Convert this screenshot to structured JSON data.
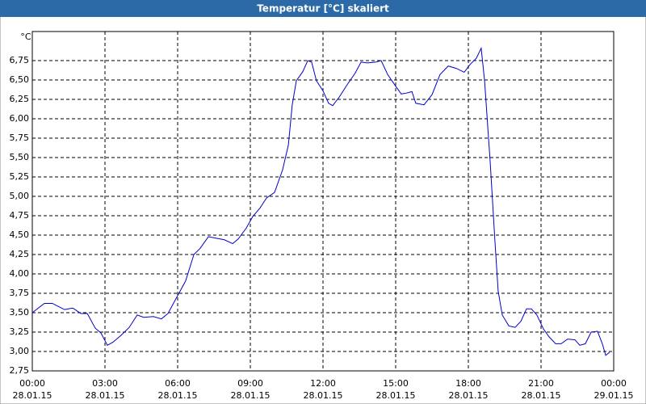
{
  "chart_data": {
    "type": "line",
    "title": "Temperatur [°C] skaliert",
    "ylabel": "°C",
    "color": "#0000cc",
    "grid": true,
    "x": [
      0,
      0.5,
      0.83,
      1.33,
      1.67,
      2.0,
      2.27,
      2.6,
      2.83,
      3.1,
      3.33,
      3.67,
      4.0,
      4.33,
      4.6,
      5.0,
      5.33,
      5.6,
      6.0,
      6.33,
      6.67,
      6.93,
      7.27,
      7.6,
      7.93,
      8.27,
      8.5,
      8.83,
      9.1,
      9.4,
      9.67,
      10.0,
      10.33,
      10.57,
      10.73,
      10.9,
      11.17,
      11.37,
      11.53,
      11.73,
      12.0,
      12.23,
      12.4,
      12.67,
      13.0,
      13.33,
      13.57,
      13.83,
      14.17,
      14.4,
      14.67,
      15.0,
      15.23,
      15.43,
      15.67,
      15.83,
      16.17,
      16.5,
      16.83,
      17.17,
      17.5,
      17.83,
      18.07,
      18.33,
      18.53,
      18.67,
      18.9,
      19.1,
      19.23,
      19.4,
      19.67,
      19.93,
      20.17,
      20.4,
      20.6,
      20.83,
      21.1,
      21.33,
      21.6,
      21.83,
      22.1,
      22.4,
      22.6,
      22.83,
      23.07,
      23.33,
      23.53,
      23.67,
      23.83
    ],
    "values": [
      3.5,
      3.62,
      3.62,
      3.54,
      3.56,
      3.49,
      3.49,
      3.3,
      3.24,
      3.08,
      3.12,
      3.21,
      3.31,
      3.47,
      3.44,
      3.45,
      3.42,
      3.49,
      3.72,
      3.91,
      4.25,
      4.33,
      4.48,
      4.46,
      4.44,
      4.39,
      4.45,
      4.59,
      4.74,
      4.85,
      4.98,
      5.05,
      5.34,
      5.66,
      6.18,
      6.49,
      6.61,
      6.75,
      6.73,
      6.49,
      6.36,
      6.2,
      6.17,
      6.28,
      6.44,
      6.59,
      6.73,
      6.72,
      6.73,
      6.75,
      6.57,
      6.42,
      6.32,
      6.33,
      6.35,
      6.2,
      6.18,
      6.31,
      6.57,
      6.68,
      6.65,
      6.6,
      6.7,
      6.78,
      6.91,
      6.49,
      5.45,
      4.41,
      3.78,
      3.47,
      3.33,
      3.31,
      3.39,
      3.55,
      3.55,
      3.47,
      3.29,
      3.19,
      3.1,
      3.1,
      3.16,
      3.15,
      3.08,
      3.1,
      3.25,
      3.26,
      3.1,
      2.95,
      2.99
    ],
    "xlim": [
      0,
      24
    ],
    "xticks": [
      {
        "value": 0,
        "label": "00:00"
      },
      {
        "value": 3,
        "label": "03:00"
      },
      {
        "value": 6,
        "label": "06:00"
      },
      {
        "value": 9,
        "label": "09:00"
      },
      {
        "value": 12,
        "label": "12:00"
      },
      {
        "value": 15,
        "label": "15:00"
      },
      {
        "value": 18,
        "label": "18:00"
      },
      {
        "value": 21,
        "label": "21:00"
      },
      {
        "value": 24,
        "label": "00:00"
      }
    ],
    "xtick_dates": [
      "28.01.15",
      "28.01.15",
      "28.01.15",
      "28.01.15",
      "28.01.15",
      "28.01.15",
      "28.01.15",
      "28.01.15",
      "29.01.15"
    ],
    "ylim": [
      2.75,
      7.125
    ],
    "yticks": [
      {
        "value": 2.75,
        "label": "2,75"
      },
      {
        "value": 3,
        "label": "3,00"
      },
      {
        "value": 3.25,
        "label": "3,25"
      },
      {
        "value": 3.5,
        "label": "3,50"
      },
      {
        "value": 3.75,
        "label": "3,75"
      },
      {
        "value": 4,
        "label": "4,00"
      },
      {
        "value": 4.25,
        "label": "4,25"
      },
      {
        "value": 4.5,
        "label": "4,50"
      },
      {
        "value": 4.75,
        "label": "4,75"
      },
      {
        "value": 5,
        "label": "5,00"
      },
      {
        "value": 5.25,
        "label": "5,25"
      },
      {
        "value": 5.5,
        "label": "5,50"
      },
      {
        "value": 5.75,
        "label": "5,75"
      },
      {
        "value": 6,
        "label": "6,00"
      },
      {
        "value": 6.25,
        "label": "6,25"
      },
      {
        "value": 6.5,
        "label": "6,50"
      },
      {
        "value": 6.75,
        "label": "6,75"
      }
    ]
  }
}
